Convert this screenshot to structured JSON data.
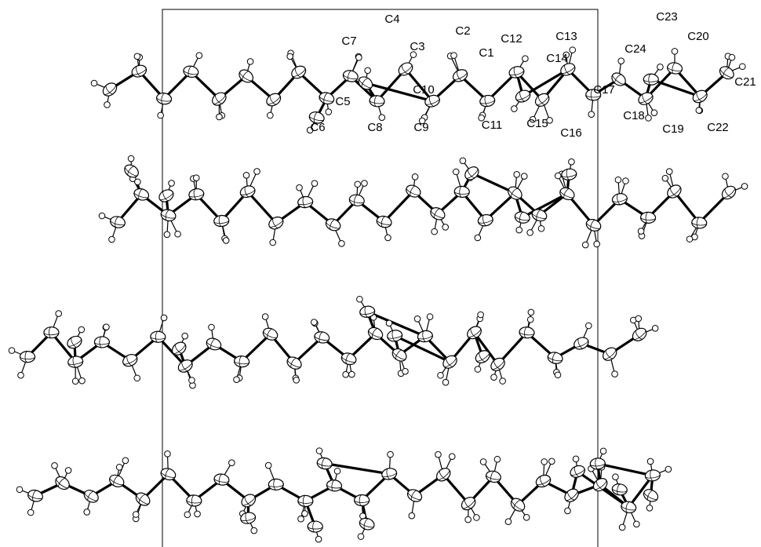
{
  "atom_labels": [
    "C1",
    "C2",
    "C3",
    "C4",
    "C5",
    "C6",
    "C7",
    "C8",
    "C9",
    "C10",
    "C11",
    "C12",
    "C13",
    "C14",
    "C15",
    "C16",
    "C17",
    "C18",
    "C19",
    "C20",
    "C21",
    "C22",
    "C23",
    "C24"
  ]
}
